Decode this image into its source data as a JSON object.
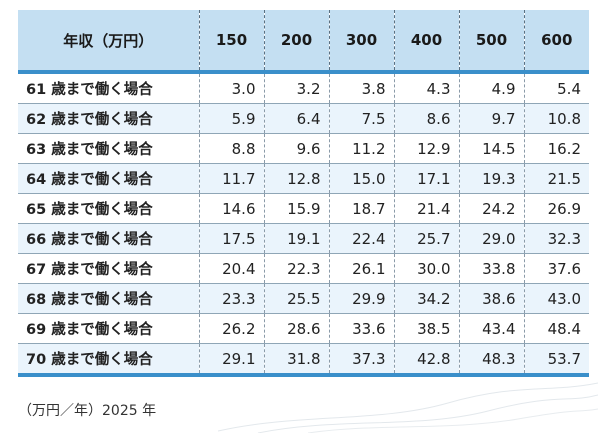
{
  "table": {
    "corner_header": "年収（万円）",
    "columns": [
      "150",
      "200",
      "300",
      "400",
      "500",
      "600"
    ],
    "rows": [
      {
        "label": "61 歳まで働く場合",
        "values": [
          "3.0",
          "3.2",
          "3.8",
          "4.3",
          "4.9",
          "5.4"
        ]
      },
      {
        "label": "62 歳まで働く場合",
        "values": [
          "5.9",
          "6.4",
          "7.5",
          "8.6",
          "9.7",
          "10.8"
        ]
      },
      {
        "label": "63 歳まで働く場合",
        "values": [
          "8.8",
          "9.6",
          "11.2",
          "12.9",
          "14.5",
          "16.2"
        ]
      },
      {
        "label": "64 歳まで働く場合",
        "values": [
          "11.7",
          "12.8",
          "15.0",
          "17.1",
          "19.3",
          "21.5"
        ]
      },
      {
        "label": "65 歳まで働く場合",
        "values": [
          "14.6",
          "15.9",
          "18.7",
          "21.4",
          "24.2",
          "26.9"
        ]
      },
      {
        "label": "66 歳まで働く場合",
        "values": [
          "17.5",
          "19.1",
          "22.4",
          "25.7",
          "29.0",
          "32.3"
        ]
      },
      {
        "label": "67 歳まで働く場合",
        "values": [
          "20.4",
          "22.3",
          "26.1",
          "30.0",
          "33.8",
          "37.6"
        ]
      },
      {
        "label": "68 歳まで働く場合",
        "values": [
          "23.3",
          "25.5",
          "29.9",
          "34.2",
          "38.6",
          "43.0"
        ]
      },
      {
        "label": "69 歳まで働く場合",
        "values": [
          "26.2",
          "28.6",
          "33.6",
          "38.5",
          "43.4",
          "48.4"
        ]
      },
      {
        "label": "70 歳まで働く場合",
        "values": [
          "29.1",
          "31.8",
          "37.3",
          "42.8",
          "48.3",
          "53.7"
        ]
      }
    ]
  },
  "footnote": "（万円／年）2025 年",
  "colors": {
    "header_bg": "#c4dff2",
    "accent_line": "#3a8fca",
    "stripe_bg": "#eaf4fc"
  }
}
